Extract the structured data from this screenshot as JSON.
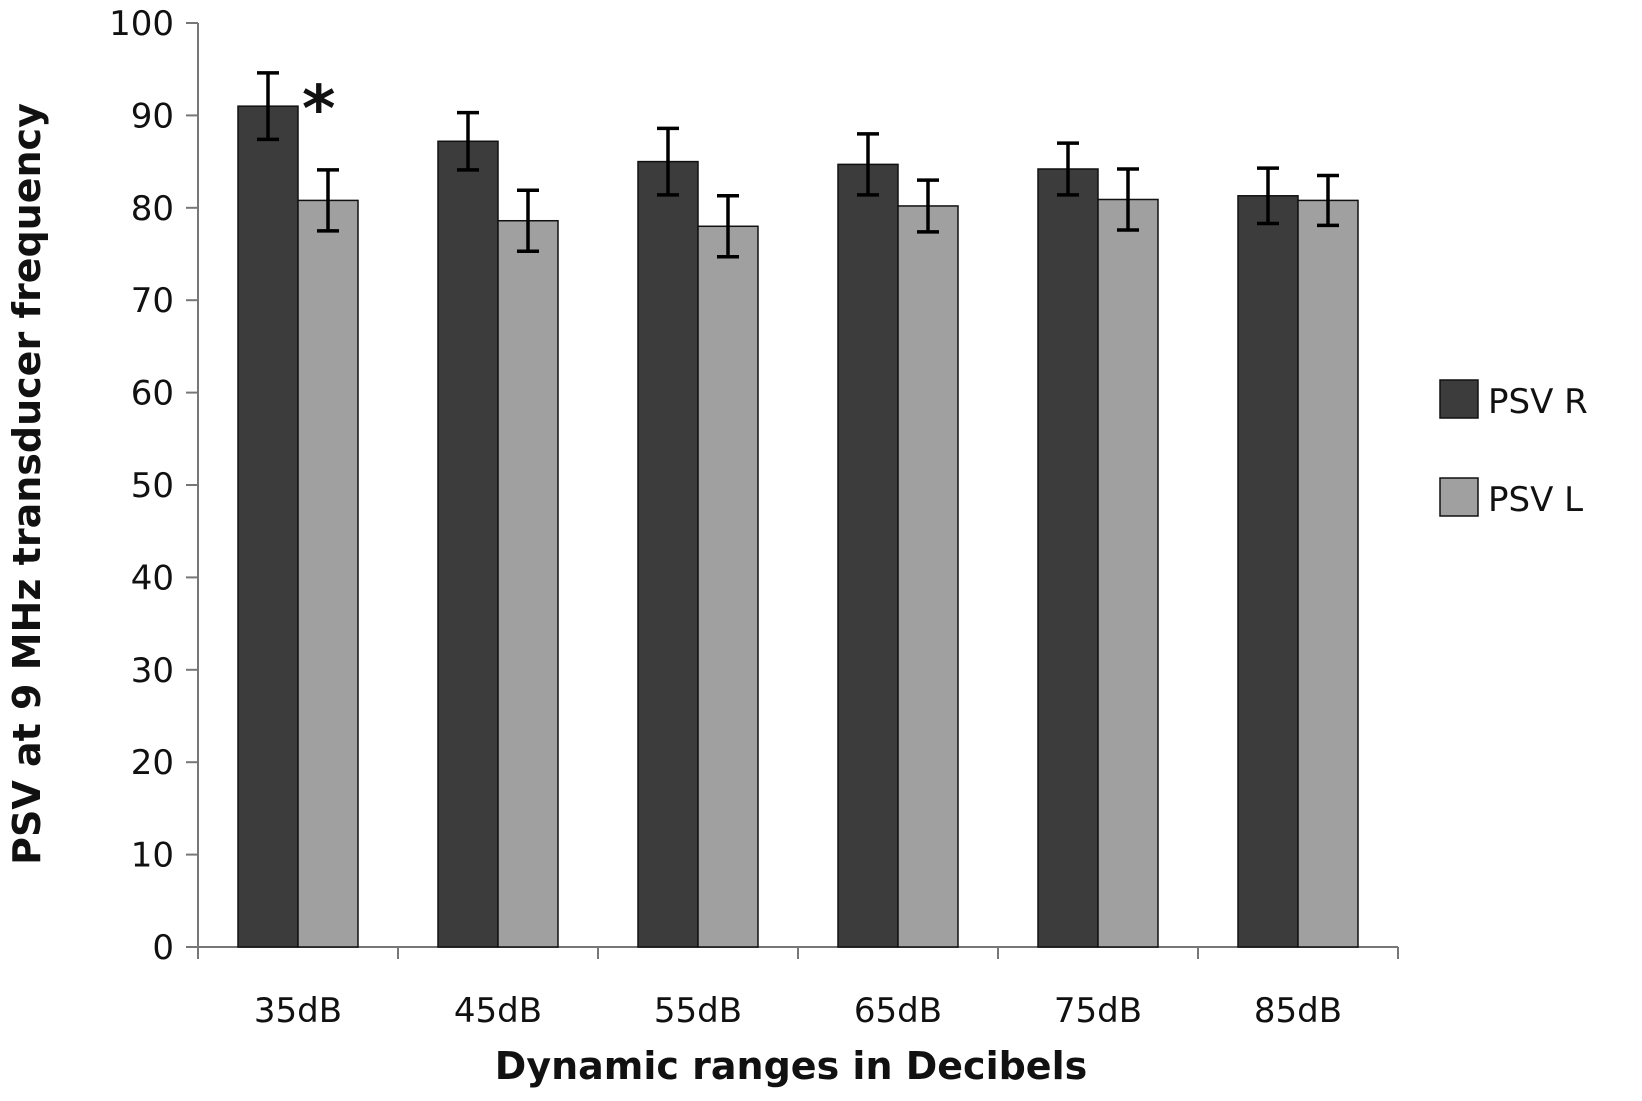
{
  "chart_data": {
    "type": "bar",
    "categories": [
      "35dB",
      "45dB",
      "55dB",
      "65dB",
      "75dB",
      "85dB"
    ],
    "series": [
      {
        "name": "PSV R",
        "color": "#3c3c3c",
        "values": [
          91,
          87.2,
          85,
          84.7,
          84.2,
          81.3
        ],
        "error": [
          3.6,
          3.1,
          3.6,
          3.3,
          2.8,
          3.0
        ]
      },
      {
        "name": "PSV L",
        "color": "#a0a0a0",
        "values": [
          80.8,
          78.6,
          78,
          80.2,
          80.9,
          80.8
        ],
        "error": [
          3.3,
          3.3,
          3.3,
          2.8,
          3.3,
          2.7
        ]
      }
    ],
    "ylim": [
      0,
      100
    ],
    "yticks": [
      0,
      10,
      20,
      30,
      40,
      50,
      60,
      70,
      80,
      90,
      100
    ],
    "xlabel": "Dynamic ranges in Decibels",
    "ylabel": "PSV at 9 MHz transducer frequency",
    "legend_position": "right",
    "grid": false,
    "annotations": [
      {
        "text": "*",
        "category": "35dB",
        "series": "PSV R"
      }
    ]
  }
}
